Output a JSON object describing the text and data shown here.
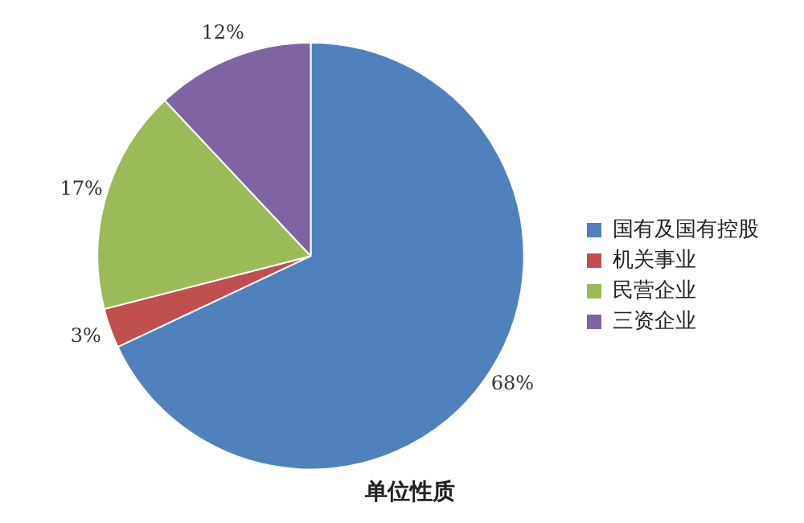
{
  "chart_data": {
    "type": "pie",
    "title": "单位性质",
    "categories": [
      "国有及国有控股",
      "机关事业",
      "民营企业",
      "三资企业"
    ],
    "values": [
      68,
      3,
      17,
      12
    ],
    "value_labels": [
      "68%",
      "3%",
      "17%",
      "12%"
    ],
    "colors": [
      "#4f81bd",
      "#c0504d",
      "#9bbb59",
      "#8064a2"
    ],
    "legend": "right"
  }
}
